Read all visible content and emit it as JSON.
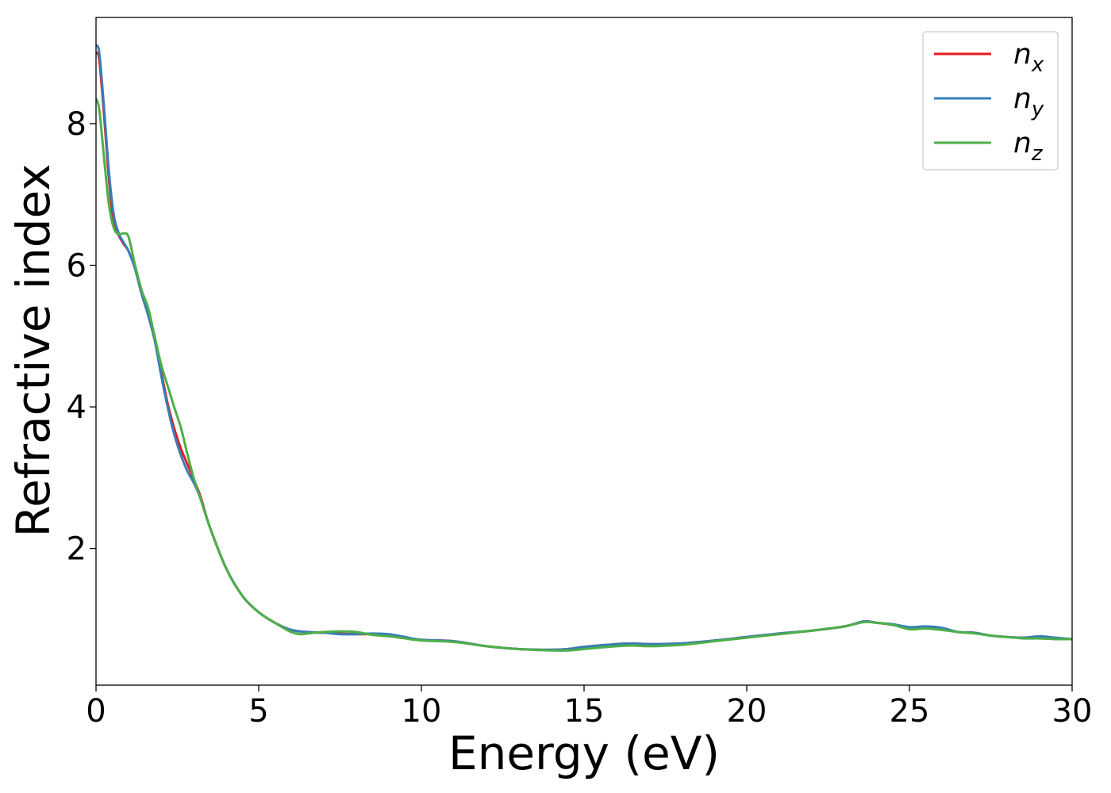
{
  "chart_data": {
    "type": "line",
    "xlabel": "Energy (eV)",
    "ylabel": "Refractive index",
    "xlim": [
      0,
      30
    ],
    "ylim": [
      0.07,
      9.5
    ],
    "xticks": [
      0,
      5,
      10,
      15,
      20,
      25,
      30
    ],
    "yticks": [
      2,
      4,
      6,
      8
    ],
    "grid": false,
    "legend_position": "top-right",
    "series": [
      {
        "name": "n",
        "subscript": "x",
        "color": "#e41a1c",
        "points": [
          [
            0,
            9.0
          ],
          [
            0.1,
            8.9
          ],
          [
            0.25,
            8.1
          ],
          [
            0.4,
            7.2
          ],
          [
            0.55,
            6.6
          ],
          [
            0.7,
            6.42
          ],
          [
            0.85,
            6.3
          ],
          [
            1.0,
            6.2
          ],
          [
            1.2,
            5.95
          ],
          [
            1.4,
            5.6
          ],
          [
            1.6,
            5.3
          ],
          [
            1.8,
            4.95
          ],
          [
            2.0,
            4.5
          ],
          [
            2.2,
            4.05
          ],
          [
            2.4,
            3.7
          ],
          [
            2.6,
            3.42
          ],
          [
            2.8,
            3.2
          ],
          [
            3.0,
            2.98
          ],
          [
            3.2,
            2.75
          ],
          [
            3.5,
            2.3
          ],
          [
            4.0,
            1.72
          ],
          [
            4.5,
            1.33
          ],
          [
            5.0,
            1.1
          ],
          [
            5.5,
            0.95
          ],
          [
            6.0,
            0.85
          ],
          [
            6.5,
            0.82
          ],
          [
            7.0,
            0.81
          ],
          [
            7.5,
            0.8
          ],
          [
            8.0,
            0.79
          ],
          [
            8.5,
            0.79
          ],
          [
            9.0,
            0.78
          ],
          [
            9.5,
            0.74
          ],
          [
            10.0,
            0.71
          ],
          [
            11.0,
            0.69
          ],
          [
            12.0,
            0.62
          ],
          [
            13.0,
            0.58
          ],
          [
            14.0,
            0.57
          ],
          [
            14.5,
            0.58
          ],
          [
            15.0,
            0.61
          ],
          [
            16.0,
            0.65
          ],
          [
            16.5,
            0.66
          ],
          [
            17.0,
            0.65
          ],
          [
            18.0,
            0.66
          ],
          [
            19.0,
            0.7
          ],
          [
            20.0,
            0.75
          ],
          [
            21.0,
            0.8
          ],
          [
            22.0,
            0.84
          ],
          [
            23.0,
            0.9
          ],
          [
            23.6,
            0.97
          ],
          [
            24.0,
            0.95
          ],
          [
            24.5,
            0.92
          ],
          [
            25.0,
            0.88
          ],
          [
            25.5,
            0.89
          ],
          [
            26.0,
            0.87
          ],
          [
            26.5,
            0.82
          ],
          [
            27.0,
            0.81
          ],
          [
            27.5,
            0.77
          ],
          [
            28.0,
            0.75
          ],
          [
            28.5,
            0.74
          ],
          [
            29.0,
            0.75
          ],
          [
            29.5,
            0.73
          ],
          [
            30.0,
            0.72
          ]
        ]
      },
      {
        "name": "n",
        "subscript": "y",
        "color": "#377eb8",
        "points": [
          [
            0,
            9.1
          ],
          [
            0.1,
            9.0
          ],
          [
            0.25,
            8.2
          ],
          [
            0.4,
            7.3
          ],
          [
            0.55,
            6.7
          ],
          [
            0.7,
            6.45
          ],
          [
            0.85,
            6.32
          ],
          [
            1.0,
            6.2
          ],
          [
            1.2,
            5.95
          ],
          [
            1.4,
            5.6
          ],
          [
            1.6,
            5.3
          ],
          [
            1.8,
            4.95
          ],
          [
            2.0,
            4.45
          ],
          [
            2.2,
            4.0
          ],
          [
            2.4,
            3.62
          ],
          [
            2.6,
            3.33
          ],
          [
            2.8,
            3.1
          ],
          [
            3.0,
            2.93
          ],
          [
            3.2,
            2.72
          ],
          [
            3.5,
            2.3
          ],
          [
            4.0,
            1.72
          ],
          [
            4.5,
            1.33
          ],
          [
            5.0,
            1.1
          ],
          [
            5.5,
            0.95
          ],
          [
            6.0,
            0.85
          ],
          [
            6.5,
            0.82
          ],
          [
            7.0,
            0.81
          ],
          [
            7.5,
            0.79
          ],
          [
            8.0,
            0.79
          ],
          [
            8.5,
            0.8
          ],
          [
            9.0,
            0.79
          ],
          [
            9.5,
            0.75
          ],
          [
            10.0,
            0.71
          ],
          [
            11.0,
            0.69
          ],
          [
            12.0,
            0.62
          ],
          [
            13.0,
            0.58
          ],
          [
            14.0,
            0.57
          ],
          [
            14.5,
            0.58
          ],
          [
            15.0,
            0.61
          ],
          [
            16.0,
            0.65
          ],
          [
            16.5,
            0.66
          ],
          [
            17.0,
            0.65
          ],
          [
            18.0,
            0.66
          ],
          [
            19.0,
            0.7
          ],
          [
            20.0,
            0.75
          ],
          [
            21.0,
            0.8
          ],
          [
            22.0,
            0.84
          ],
          [
            23.0,
            0.9
          ],
          [
            23.6,
            0.97
          ],
          [
            24.0,
            0.95
          ],
          [
            24.5,
            0.93
          ],
          [
            25.0,
            0.89
          ],
          [
            25.5,
            0.9
          ],
          [
            26.0,
            0.88
          ],
          [
            26.5,
            0.82
          ],
          [
            27.0,
            0.81
          ],
          [
            27.5,
            0.77
          ],
          [
            28.0,
            0.75
          ],
          [
            28.5,
            0.74
          ],
          [
            29.0,
            0.76
          ],
          [
            29.5,
            0.74
          ],
          [
            30.0,
            0.72
          ]
        ]
      },
      {
        "name": "n",
        "subscript": "z",
        "color": "#4daf4a",
        "points": [
          [
            0,
            8.35
          ],
          [
            0.1,
            8.2
          ],
          [
            0.25,
            7.5
          ],
          [
            0.4,
            6.85
          ],
          [
            0.55,
            6.52
          ],
          [
            0.7,
            6.44
          ],
          [
            0.85,
            6.45
          ],
          [
            1.0,
            6.4
          ],
          [
            1.2,
            6.0
          ],
          [
            1.4,
            5.65
          ],
          [
            1.6,
            5.4
          ],
          [
            1.8,
            5.0
          ],
          [
            2.0,
            4.6
          ],
          [
            2.2,
            4.3
          ],
          [
            2.4,
            4.0
          ],
          [
            2.6,
            3.72
          ],
          [
            2.8,
            3.35
          ],
          [
            3.0,
            3.0
          ],
          [
            3.2,
            2.72
          ],
          [
            3.5,
            2.3
          ],
          [
            4.0,
            1.72
          ],
          [
            4.5,
            1.33
          ],
          [
            5.0,
            1.1
          ],
          [
            5.5,
            0.95
          ],
          [
            6.0,
            0.82
          ],
          [
            6.3,
            0.79
          ],
          [
            6.5,
            0.8
          ],
          [
            7.0,
            0.82
          ],
          [
            7.5,
            0.83
          ],
          [
            8.0,
            0.82
          ],
          [
            8.5,
            0.78
          ],
          [
            9.0,
            0.76
          ],
          [
            9.5,
            0.73
          ],
          [
            10.0,
            0.7
          ],
          [
            11.0,
            0.68
          ],
          [
            12.0,
            0.62
          ],
          [
            13.0,
            0.58
          ],
          [
            14.0,
            0.56
          ],
          [
            14.5,
            0.56
          ],
          [
            15.0,
            0.58
          ],
          [
            16.0,
            0.62
          ],
          [
            16.5,
            0.63
          ],
          [
            17.0,
            0.62
          ],
          [
            18.0,
            0.64
          ],
          [
            19.0,
            0.69
          ],
          [
            20.0,
            0.74
          ],
          [
            21.0,
            0.79
          ],
          [
            22.0,
            0.84
          ],
          [
            23.0,
            0.9
          ],
          [
            23.6,
            0.96
          ],
          [
            24.0,
            0.95
          ],
          [
            24.5,
            0.92
          ],
          [
            25.0,
            0.86
          ],
          [
            25.5,
            0.87
          ],
          [
            26.0,
            0.85
          ],
          [
            26.5,
            0.82
          ],
          [
            27.0,
            0.8
          ],
          [
            27.5,
            0.77
          ],
          [
            28.0,
            0.75
          ],
          [
            28.5,
            0.73
          ],
          [
            29.0,
            0.73
          ],
          [
            29.5,
            0.72
          ],
          [
            30.0,
            0.72
          ]
        ]
      }
    ]
  }
}
